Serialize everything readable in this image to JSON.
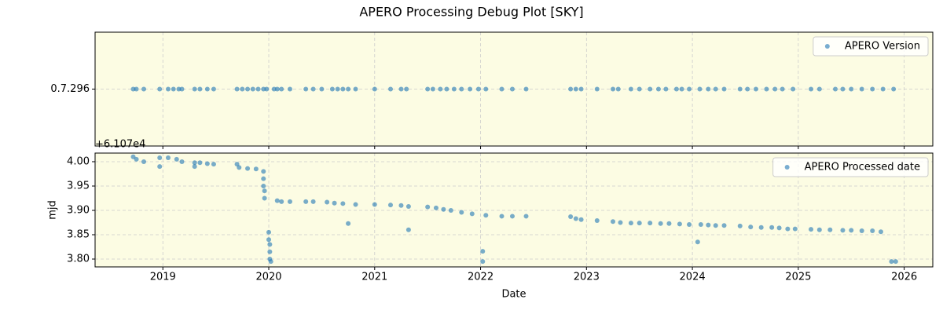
{
  "title": "APERO Processing Debug Plot [SKY]",
  "chart_data": [
    {
      "type": "scatter",
      "legend": "upper right",
      "grid": true,
      "ylim": [
        -1,
        1
      ],
      "yticks": [
        {
          "value": 0,
          "label": "0.7.296"
        }
      ],
      "series": [
        {
          "name": "APERO Version",
          "color": "#1f77b4",
          "x": [
            2018.72,
            2018.75,
            2018.82,
            2018.97,
            2019.05,
            2019.1,
            2019.15,
            2019.18,
            2019.3,
            2019.35,
            2019.42,
            2019.48,
            2019.7,
            2019.75,
            2019.8,
            2019.85,
            2019.9,
            2019.95,
            2019.98,
            2020.05,
            2020.08,
            2020.12,
            2020.2,
            2020.35,
            2020.42,
            2020.5,
            2020.6,
            2020.65,
            2020.7,
            2020.75,
            2020.82,
            2021.0,
            2021.15,
            2021.25,
            2021.3,
            2021.5,
            2021.55,
            2021.62,
            2021.68,
            2021.75,
            2021.82,
            2021.9,
            2021.98,
            2022.05,
            2022.2,
            2022.3,
            2022.43,
            2022.85,
            2022.9,
            2022.95,
            2023.1,
            2023.25,
            2023.3,
            2023.42,
            2023.5,
            2023.6,
            2023.68,
            2023.75,
            2023.85,
            2023.9,
            2023.97,
            2024.07,
            2024.15,
            2024.22,
            2024.3,
            2024.45,
            2024.52,
            2024.6,
            2024.7,
            2024.78,
            2024.85,
            2024.95,
            2025.12,
            2025.2,
            2025.35,
            2025.42,
            2025.5,
            2025.6,
            2025.7,
            2025.8,
            2025.9
          ],
          "values": [
            0,
            0,
            0,
            0,
            0,
            0,
            0,
            0,
            0,
            0,
            0,
            0,
            0,
            0,
            0,
            0,
            0,
            0,
            0,
            0,
            0,
            0,
            0,
            0,
            0,
            0,
            0,
            0,
            0,
            0,
            0,
            0,
            0,
            0,
            0,
            0,
            0,
            0,
            0,
            0,
            0,
            0,
            0,
            0,
            0,
            0,
            0,
            0,
            0,
            0,
            0,
            0,
            0,
            0,
            0,
            0,
            0,
            0,
            0,
            0,
            0,
            0,
            0,
            0,
            0,
            0,
            0,
            0,
            0,
            0,
            0,
            0,
            0,
            0,
            0,
            0,
            0,
            0,
            0,
            0,
            0
          ]
        }
      ]
    },
    {
      "type": "scatter",
      "legend": "upper right",
      "grid": true,
      "xlabel": "Date",
      "ylabel": "mjd",
      "offset_text": "+6.107e4",
      "xlim": [
        2018.36,
        2026.27
      ],
      "xticks": [
        2019,
        2020,
        2021,
        2022,
        2023,
        2024,
        2025,
        2026
      ],
      "ylim": [
        3.7839,
        4.0177
      ],
      "yticks": [
        {
          "value": 3.8,
          "label": "3.80"
        },
        {
          "value": 3.85,
          "label": "3.85"
        },
        {
          "value": 3.9,
          "label": "3.90"
        },
        {
          "value": 3.95,
          "label": "3.95"
        },
        {
          "value": 4,
          "label": "4.00"
        }
      ],
      "series": [
        {
          "name": "APERO Processed date",
          "color": "#1f77b4",
          "x": [
            2018.72,
            2018.75,
            2018.82,
            2018.97,
            2018.97,
            2019.05,
            2019.13,
            2019.18,
            2019.3,
            2019.3,
            2019.35,
            2019.42,
            2019.48,
            2019.7,
            2019.72,
            2019.8,
            2019.88,
            2019.95,
            2019.95,
            2019.95,
            2019.96,
            2019.96,
            2020.0,
            2020.0,
            2020.01,
            2020.01,
            2020.01,
            2020.02,
            2020.08,
            2020.12,
            2020.2,
            2020.35,
            2020.42,
            2020.55,
            2020.62,
            2020.7,
            2020.75,
            2020.82,
            2021.0,
            2021.15,
            2021.25,
            2021.32,
            2021.32,
            2021.5,
            2021.58,
            2021.65,
            2021.72,
            2021.82,
            2021.92,
            2022.02,
            2022.02,
            2022.05,
            2022.2,
            2022.3,
            2022.43,
            2022.85,
            2022.9,
            2022.95,
            2023.1,
            2023.25,
            2023.32,
            2023.42,
            2023.5,
            2023.6,
            2023.7,
            2023.78,
            2023.88,
            2023.97,
            2024.05,
            2024.08,
            2024.15,
            2024.22,
            2024.3,
            2024.45,
            2024.55,
            2024.65,
            2024.75,
            2024.82,
            2024.9,
            2024.97,
            2025.12,
            2025.2,
            2025.3,
            2025.42,
            2025.5,
            2025.6,
            2025.7,
            2025.78,
            2025.88,
            2025.92
          ],
          "values": [
            4.01,
            4.005,
            4.0,
            3.99,
            4.008,
            4.008,
            4.005,
            4.0,
            3.99,
            3.998,
            3.998,
            3.996,
            3.995,
            3.995,
            3.988,
            3.986,
            3.985,
            3.98,
            3.965,
            3.95,
            3.94,
            3.925,
            3.855,
            3.84,
            3.83,
            3.815,
            3.8,
            3.795,
            3.92,
            3.918,
            3.918,
            3.918,
            3.918,
            3.917,
            3.915,
            3.914,
            3.873,
            3.912,
            3.912,
            3.911,
            3.91,
            3.86,
            3.908,
            3.907,
            3.905,
            3.902,
            3.9,
            3.896,
            3.893,
            3.816,
            3.795,
            3.89,
            3.888,
            3.888,
            3.888,
            3.887,
            3.883,
            3.881,
            3.879,
            3.877,
            3.875,
            3.874,
            3.874,
            3.874,
            3.873,
            3.873,
            3.872,
            3.871,
            3.835,
            3.871,
            3.87,
            3.869,
            3.869,
            3.868,
            3.866,
            3.865,
            3.865,
            3.864,
            3.862,
            3.862,
            3.861,
            3.86,
            3.86,
            3.859,
            3.859,
            3.858,
            3.858,
            3.856,
            3.795,
            3.795
          ]
        }
      ]
    }
  ]
}
